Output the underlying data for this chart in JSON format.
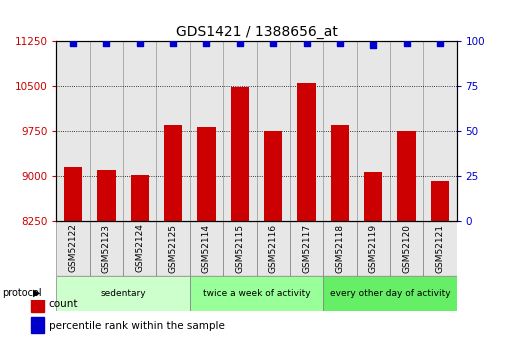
{
  "title": "GDS1421 / 1388656_at",
  "categories": [
    "GSM52122",
    "GSM52123",
    "GSM52124",
    "GSM52125",
    "GSM52114",
    "GSM52115",
    "GSM52116",
    "GSM52117",
    "GSM52118",
    "GSM52119",
    "GSM52120",
    "GSM52121"
  ],
  "bar_values": [
    9150,
    9100,
    9010,
    9850,
    9820,
    10480,
    9750,
    10550,
    9850,
    9070,
    9750,
    8920
  ],
  "percentile_values": [
    99,
    99,
    99,
    99,
    99,
    99,
    99,
    99,
    99,
    98,
    99,
    99
  ],
  "bar_color": "#cc0000",
  "dot_color": "#0000cc",
  "ylim_left": [
    8250,
    11250
  ],
  "ylim_right": [
    0,
    100
  ],
  "yticks_left": [
    8250,
    9000,
    9750,
    10500,
    11250
  ],
  "yticks_right": [
    0,
    25,
    50,
    75,
    100
  ],
  "groups": [
    {
      "label": "sedentary",
      "start": 0,
      "end": 4,
      "color": "#ccffcc"
    },
    {
      "label": "twice a week of activity",
      "start": 4,
      "end": 8,
      "color": "#99ff99"
    },
    {
      "label": "every other day of activity",
      "start": 8,
      "end": 12,
      "color": "#66ee66"
    }
  ],
  "protocol_label": "protocol",
  "legend_items": [
    {
      "label": "count",
      "color": "#cc0000"
    },
    {
      "label": "percentile rank within the sample",
      "color": "#0000cc"
    }
  ],
  "background_color": "#ffffff",
  "bar_width": 0.55,
  "tick_color_left": "#cc0000",
  "tick_color_right": "#0000cc",
  "cell_color": "#d0d0d0",
  "ybase": 8250
}
